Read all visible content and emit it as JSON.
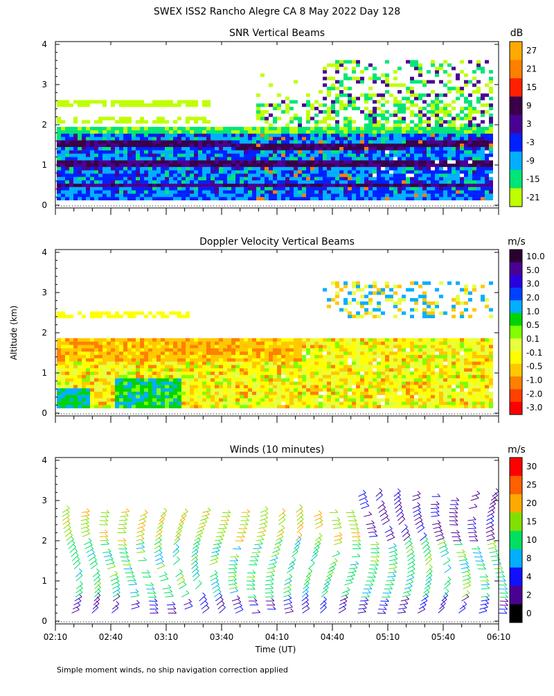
{
  "title": "SWEX ISS2 Rancho Alegre CA   8 May 2022 Day 128",
  "ylabel": "Altitude (km)",
  "xlabel": "Time (UT)",
  "footnote": "Simple moment winds, no ship navigation correction applied",
  "chart_data": [
    {
      "type": "heatmap",
      "title": "SNR Vertical Beams",
      "unit": "dB",
      "ylim": [
        0,
        4
      ],
      "yticks": [
        "0",
        "1",
        "2",
        "3",
        "4"
      ],
      "xlim": [
        "02:10",
        "06:10"
      ],
      "colorbar": {
        "labels": [
          "27",
          "21",
          "15",
          "9",
          "3",
          "-3",
          "-9",
          "-15",
          "-21"
        ],
        "colors": [
          "#ffaa00",
          "#ff7f00",
          "#ff2000",
          "#3a004a",
          "#4b0094",
          "#0020ff",
          "#00b0ff",
          "#00e676",
          "#bfff00"
        ]
      }
    },
    {
      "type": "heatmap",
      "title": "Doppler Velocity Vertical Beams",
      "unit": "m/s",
      "ylim": [
        0,
        4
      ],
      "yticks": [
        "0",
        "1",
        "2",
        "3",
        "4"
      ],
      "xlim": [
        "02:10",
        "06:10"
      ],
      "colorbar": {
        "labels": [
          "10.0",
          "5.0",
          "3.0",
          "2.0",
          "1.0",
          "0.5",
          "0.1",
          "-0.1",
          "-0.5",
          "-1.0",
          "-2.0",
          "-3.0"
        ],
        "colors": [
          "#2a0030",
          "#4b0094",
          "#2a00e0",
          "#0040ff",
          "#00b0ff",
          "#00d400",
          "#7fff00",
          "#e8ff40",
          "#ffff00",
          "#ffc800",
          "#ff8000",
          "#ff4000",
          "#ff0000"
        ]
      }
    },
    {
      "type": "wind-barbs",
      "title": "Winds (10 minutes)",
      "unit": "m/s",
      "ylim": [
        0,
        4
      ],
      "yticks": [
        "0",
        "1",
        "2",
        "3",
        "4"
      ],
      "xticks": [
        "02:10",
        "02:40",
        "03:10",
        "03:40",
        "04:10",
        "04:40",
        "05:10",
        "05:40",
        "06:10"
      ],
      "colorbar": {
        "labels": [
          "30",
          "25",
          "20",
          "15",
          "10",
          "8",
          "4",
          "2",
          "0"
        ],
        "colors": [
          "#ff0000",
          "#ff6000",
          "#ffaa00",
          "#80e000",
          "#00e060",
          "#00b0ff",
          "#1010ff",
          "#4b0094",
          "#000000"
        ]
      }
    }
  ]
}
